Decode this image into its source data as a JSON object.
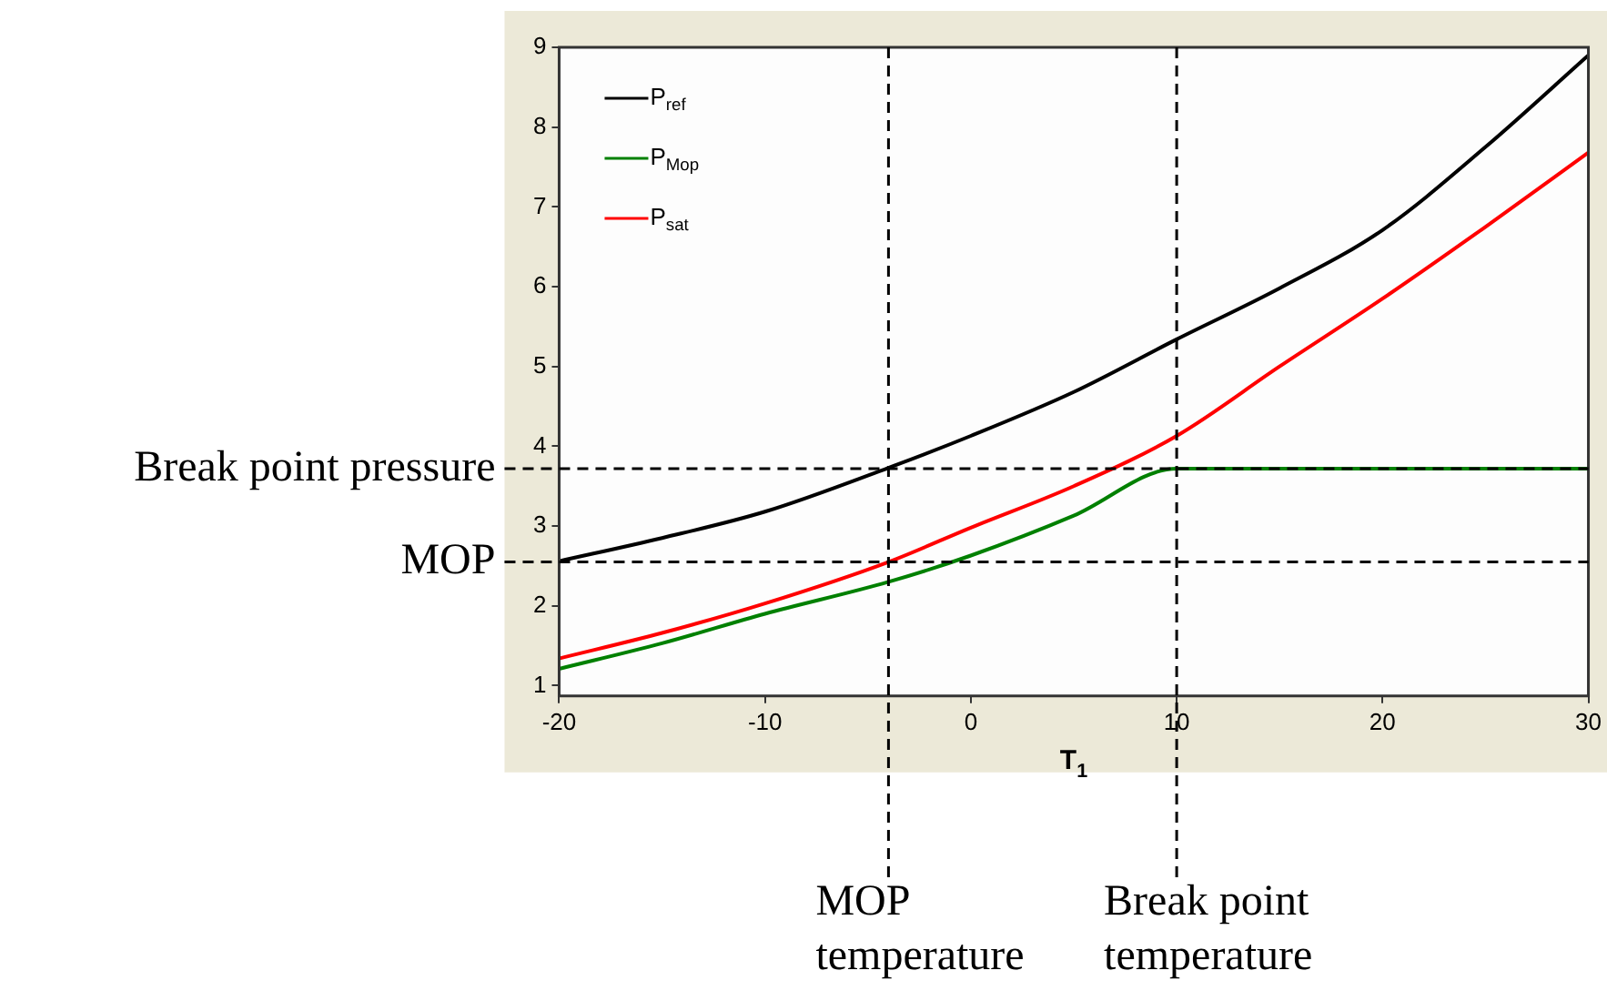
{
  "chart_data": {
    "type": "line",
    "xlabel": "T$_{1}$",
    "x": [
      -20,
      -15,
      -10,
      -4,
      0,
      5,
      10,
      15,
      20,
      25,
      30
    ],
    "series": [
      {
        "name": "P$_{ref}$",
        "color": "#000000",
        "values": [
          2.56,
          2.85,
          3.18,
          3.73,
          4.13,
          4.68,
          5.34,
          5.98,
          6.71,
          7.75,
          8.9
        ]
      },
      {
        "name": "P$_{Mop}$",
        "color": "#008000",
        "x": [
          -20,
          -15,
          -10,
          -4,
          0,
          5,
          10,
          15,
          20,
          25,
          30
        ],
        "values": [
          1.21,
          1.53,
          1.9,
          2.3,
          2.63,
          3.13,
          3.72,
          3.72,
          3.72,
          3.72,
          3.72
        ]
      },
      {
        "name": "P$_{sat}$",
        "color": "#ff0000",
        "values": [
          1.34,
          1.66,
          2.03,
          2.55,
          2.98,
          3.5,
          4.13,
          5.0,
          5.85,
          6.75,
          7.68
        ]
      }
    ],
    "xlim": [
      -20,
      30
    ],
    "xticks": [
      -20,
      -10,
      0,
      10,
      20,
      30
    ],
    "ylim": [
      0.87,
      9
    ],
    "yticks": [
      1,
      2,
      3,
      4,
      5,
      6,
      7,
      8,
      9
    ],
    "ref_lines": [
      {
        "axis": "y",
        "value": 3.72,
        "label": "Break point pressure",
        "color": "#000000",
        "line_style": "dashed"
      },
      {
        "axis": "y",
        "value": 2.55,
        "label": "MOP",
        "color": "#000000",
        "line_style": "dashed"
      },
      {
        "axis": "x",
        "value": -4,
        "label": "MOP temperature",
        "color": "#000000",
        "line_style": "dashed"
      },
      {
        "axis": "x",
        "value": 10,
        "label": "Break point temperature",
        "color": "#000000",
        "line_style": "dashed"
      }
    ],
    "grid": false,
    "legend": "top left",
    "marker": "none",
    "line_style": "solid"
  }
}
